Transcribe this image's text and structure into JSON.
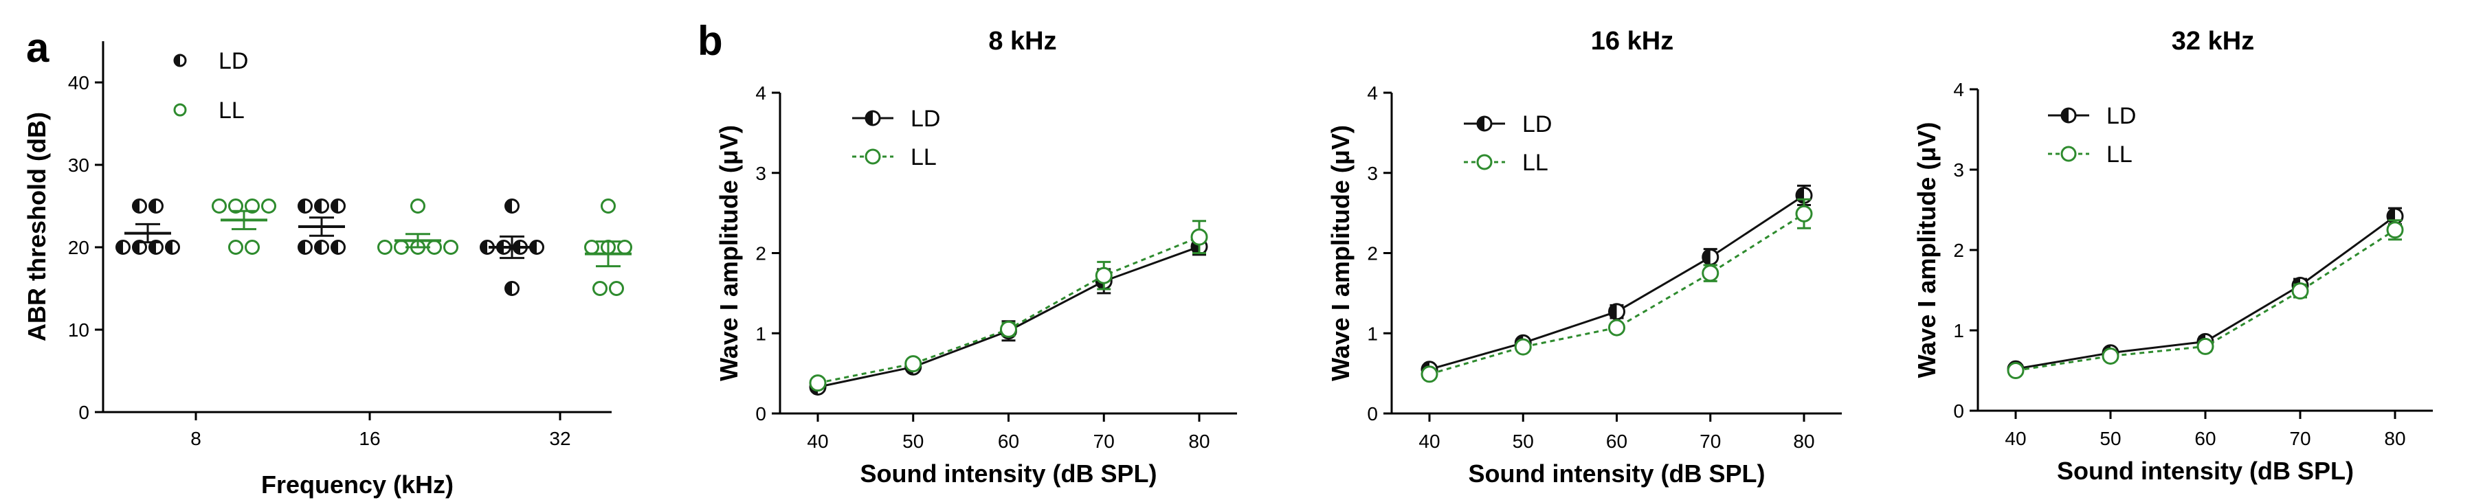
{
  "colors": {
    "LD": "#111111",
    "LL": "#2e8b2e"
  },
  "chart_data": [
    {
      "panel_label": "a",
      "type": "scatter",
      "title": "",
      "xlabel": "Frequency (kHz)",
      "ylabel": "ABR threshold (dB)",
      "categories": [
        "8",
        "16",
        "32"
      ],
      "ylim": [
        0,
        45
      ],
      "yticks": [
        "0",
        "10",
        "20",
        "30",
        "40"
      ],
      "legend": [
        "LD",
        "LL"
      ],
      "series": [
        {
          "name": "LD",
          "points": [
            [
              25,
              25,
              20,
              20,
              20,
              20
            ],
            [
              25,
              25,
              25,
              20,
              20,
              20
            ],
            [
              25,
              20,
              20,
              20,
              20,
              15
            ]
          ],
          "mean": [
            21.7,
            22.5,
            20.0
          ],
          "sem": [
            1.1,
            1.1,
            1.3
          ]
        },
        {
          "name": "LL",
          "points": [
            [
              25,
              25,
              25,
              25,
              20,
              20
            ],
            [
              25,
              20,
              20,
              20,
              20,
              20
            ],
            [
              25,
              20,
              20,
              20,
              15,
              15
            ]
          ],
          "mean": [
            23.3,
            20.8,
            19.2
          ],
          "sem": [
            1.1,
            0.8,
            1.5
          ]
        }
      ]
    },
    {
      "panel_label": "b",
      "type": "line",
      "title": "8 kHz",
      "xlabel": "Sound intensity (dB SPL)",
      "ylabel": "Wave I amplitude (μV)",
      "x": [
        40,
        50,
        60,
        70,
        80
      ],
      "xticks": [
        "40",
        "50",
        "60",
        "70",
        "80"
      ],
      "ylim": [
        0,
        4
      ],
      "yticks": [
        "0",
        "1",
        "2",
        "3",
        "4"
      ],
      "legend": [
        "LD",
        "LL"
      ],
      "series": [
        {
          "name": "LD",
          "values": [
            0.33,
            0.58,
            1.03,
            1.65,
            2.08
          ],
          "errors": [
            0.05,
            0.05,
            0.12,
            0.15,
            0.1
          ]
        },
        {
          "name": "LL",
          "values": [
            0.38,
            0.62,
            1.05,
            1.72,
            2.2
          ],
          "errors": [
            0.05,
            0.05,
            0.08,
            0.17,
            0.2
          ]
        }
      ]
    },
    {
      "panel_label": "",
      "type": "line",
      "title": "16 kHz",
      "xlabel": "Sound intensity (dB SPL)",
      "ylabel": "Wave I amplitude (μV)",
      "x": [
        40,
        50,
        60,
        70,
        80
      ],
      "xticks": [
        "40",
        "50",
        "60",
        "70",
        "80"
      ],
      "ylim": [
        0,
        4
      ],
      "yticks": [
        "0",
        "1",
        "2",
        "3",
        "4"
      ],
      "legend": [
        "LD",
        "LL"
      ],
      "series": [
        {
          "name": "LD",
          "values": [
            0.55,
            0.88,
            1.27,
            1.95,
            2.72
          ],
          "errors": [
            0.05,
            0.05,
            0.08,
            0.1,
            0.12
          ]
        },
        {
          "name": "LL",
          "values": [
            0.49,
            0.83,
            1.07,
            1.75,
            2.49
          ],
          "errors": [
            0.05,
            0.05,
            0.05,
            0.1,
            0.18
          ]
        }
      ]
    },
    {
      "panel_label": "",
      "type": "line",
      "title": "32 kHz",
      "xlabel": "Sound intensity (dB SPL)",
      "ylabel": "Wave I amplitude (μV)",
      "x": [
        40,
        50,
        60,
        70,
        80
      ],
      "xticks": [
        "40",
        "50",
        "60",
        "70",
        "80"
      ],
      "ylim": [
        0,
        4
      ],
      "yticks": [
        "0",
        "1",
        "2",
        "3",
        "4"
      ],
      "legend": [
        "LD",
        "LL"
      ],
      "series": [
        {
          "name": "LD",
          "values": [
            0.52,
            0.72,
            0.86,
            1.56,
            2.42
          ],
          "errors": [
            0.04,
            0.05,
            0.06,
            0.08,
            0.1
          ]
        },
        {
          "name": "LL",
          "values": [
            0.5,
            0.68,
            0.8,
            1.49,
            2.25
          ],
          "errors": [
            0.04,
            0.05,
            0.06,
            0.08,
            0.12
          ]
        }
      ]
    }
  ]
}
